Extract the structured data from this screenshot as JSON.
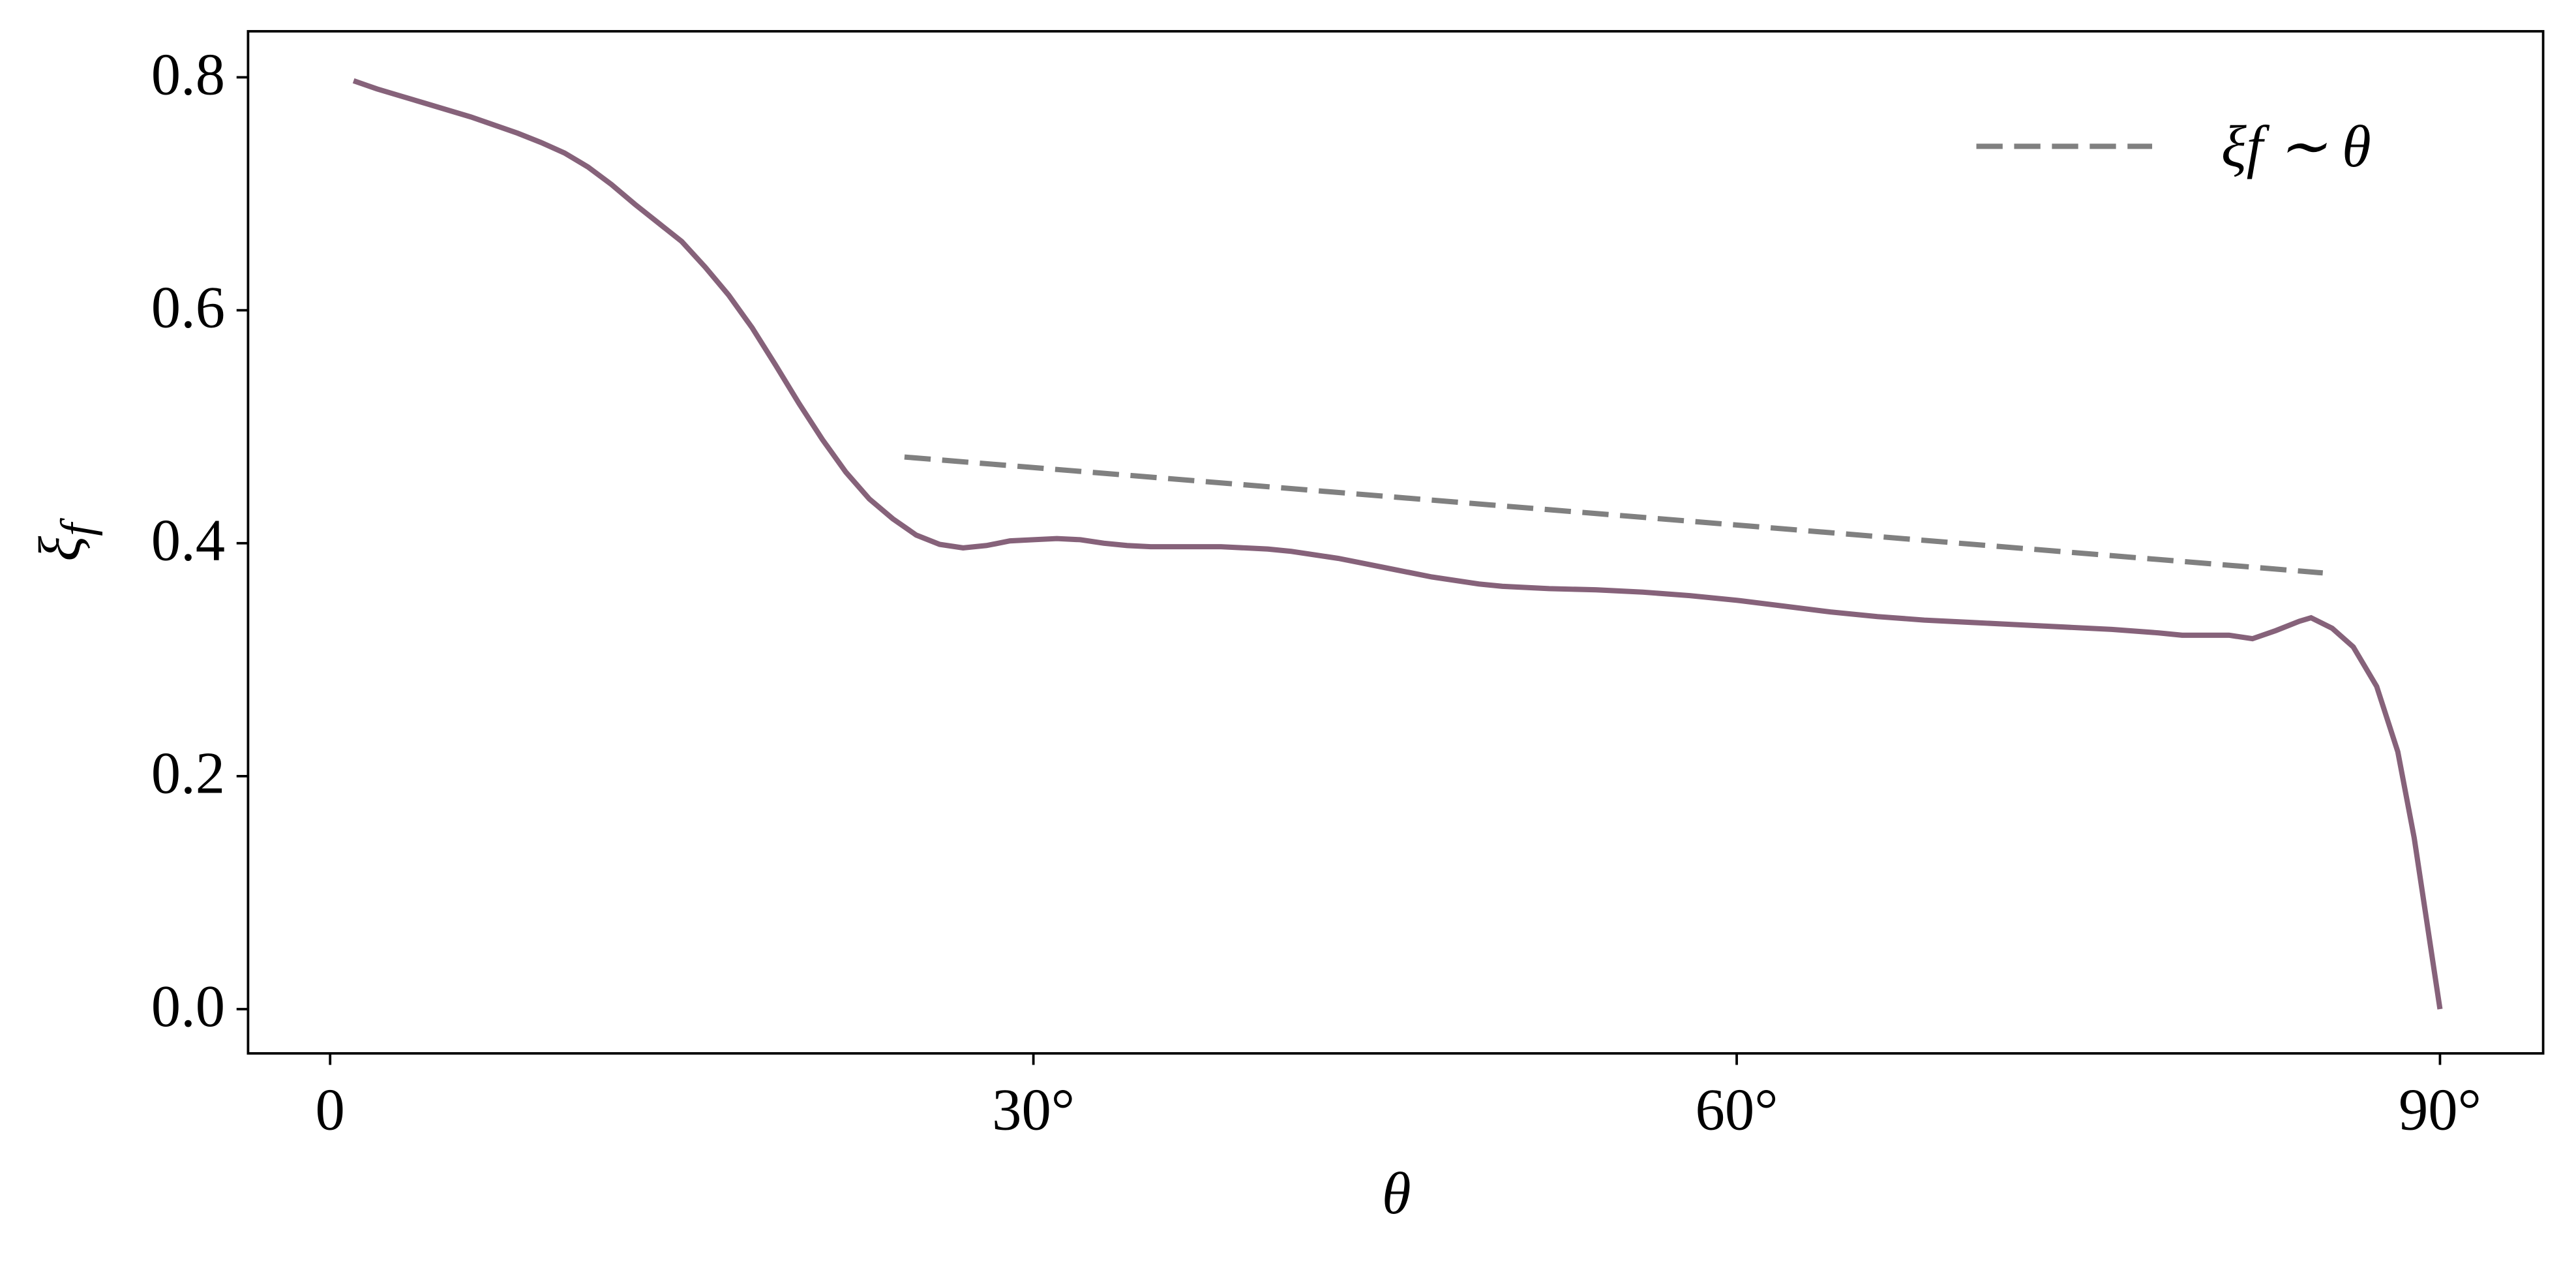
{
  "chart_data": {
    "type": "line",
    "xlabel": "θ",
    "ylabel": {
      "text": "ξ",
      "subscript": "f"
    },
    "xlim": [
      -3.5,
      94.4
    ],
    "ylim": [
      -0.038,
      0.8395
    ],
    "xticks": [
      0,
      {
        "value": 30,
        "label": "30°"
      },
      {
        "value": 60,
        "label": "60°"
      },
      {
        "value": 90,
        "label": "90°"
      }
    ],
    "yticks": [
      {
        "value": 0,
        "label": "0.0"
      },
      0.2,
      0.4,
      0.6,
      0.8
    ],
    "legend": "upper right",
    "series": [
      {
        "color": "#86627a",
        "style": "solid",
        "x": [
          1,
          2,
          3,
          4,
          5,
          6,
          7,
          8,
          9,
          10,
          11,
          12,
          13,
          14,
          15,
          16,
          17,
          18,
          19,
          20,
          21,
          22,
          23,
          24,
          25,
          26,
          27,
          28,
          29,
          30,
          31,
          32,
          33,
          34,
          35,
          36,
          37,
          38,
          39,
          40,
          41,
          42,
          43,
          44,
          45,
          46,
          47,
          48,
          49,
          50,
          52,
          54,
          56,
          58,
          60,
          62,
          64,
          66,
          68,
          70,
          72,
          74,
          76,
          78,
          79,
          80,
          81,
          82,
          83,
          84,
          84.5,
          85.4,
          86.3,
          87.3,
          88.2,
          88.9,
          90
        ],
        "values": [
          0.797,
          0.79,
          0.784,
          0.778,
          0.772,
          0.766,
          0.759,
          0.752,
          0.744,
          0.735,
          0.723,
          0.708,
          0.691,
          0.675,
          0.659,
          0.637,
          0.613,
          0.585,
          0.553,
          0.52,
          0.489,
          0.461,
          0.438,
          0.421,
          0.407,
          0.399,
          0.396,
          0.398,
          0.402,
          0.403,
          0.404,
          0.403,
          0.4,
          0.398,
          0.397,
          0.397,
          0.397,
          0.397,
          0.396,
          0.395,
          0.393,
          0.39,
          0.387,
          0.383,
          0.379,
          0.375,
          0.371,
          0.368,
          0.365,
          0.363,
          0.361,
          0.36,
          0.358,
          0.355,
          0.351,
          0.346,
          0.341,
          0.337,
          0.334,
          0.332,
          0.33,
          0.328,
          0.326,
          0.323,
          0.321,
          0.321,
          0.321,
          0.318,
          0.325,
          0.333,
          0.336,
          0.327,
          0.311,
          0.277,
          0.221,
          0.147,
          0.0
        ]
      },
      {
        "name": "ξf ∼ θ",
        "color": "#808080",
        "style": "dashed",
        "x": [
          24.5,
          85
        ],
        "values": [
          0.474,
          0.3745
        ]
      }
    ]
  }
}
